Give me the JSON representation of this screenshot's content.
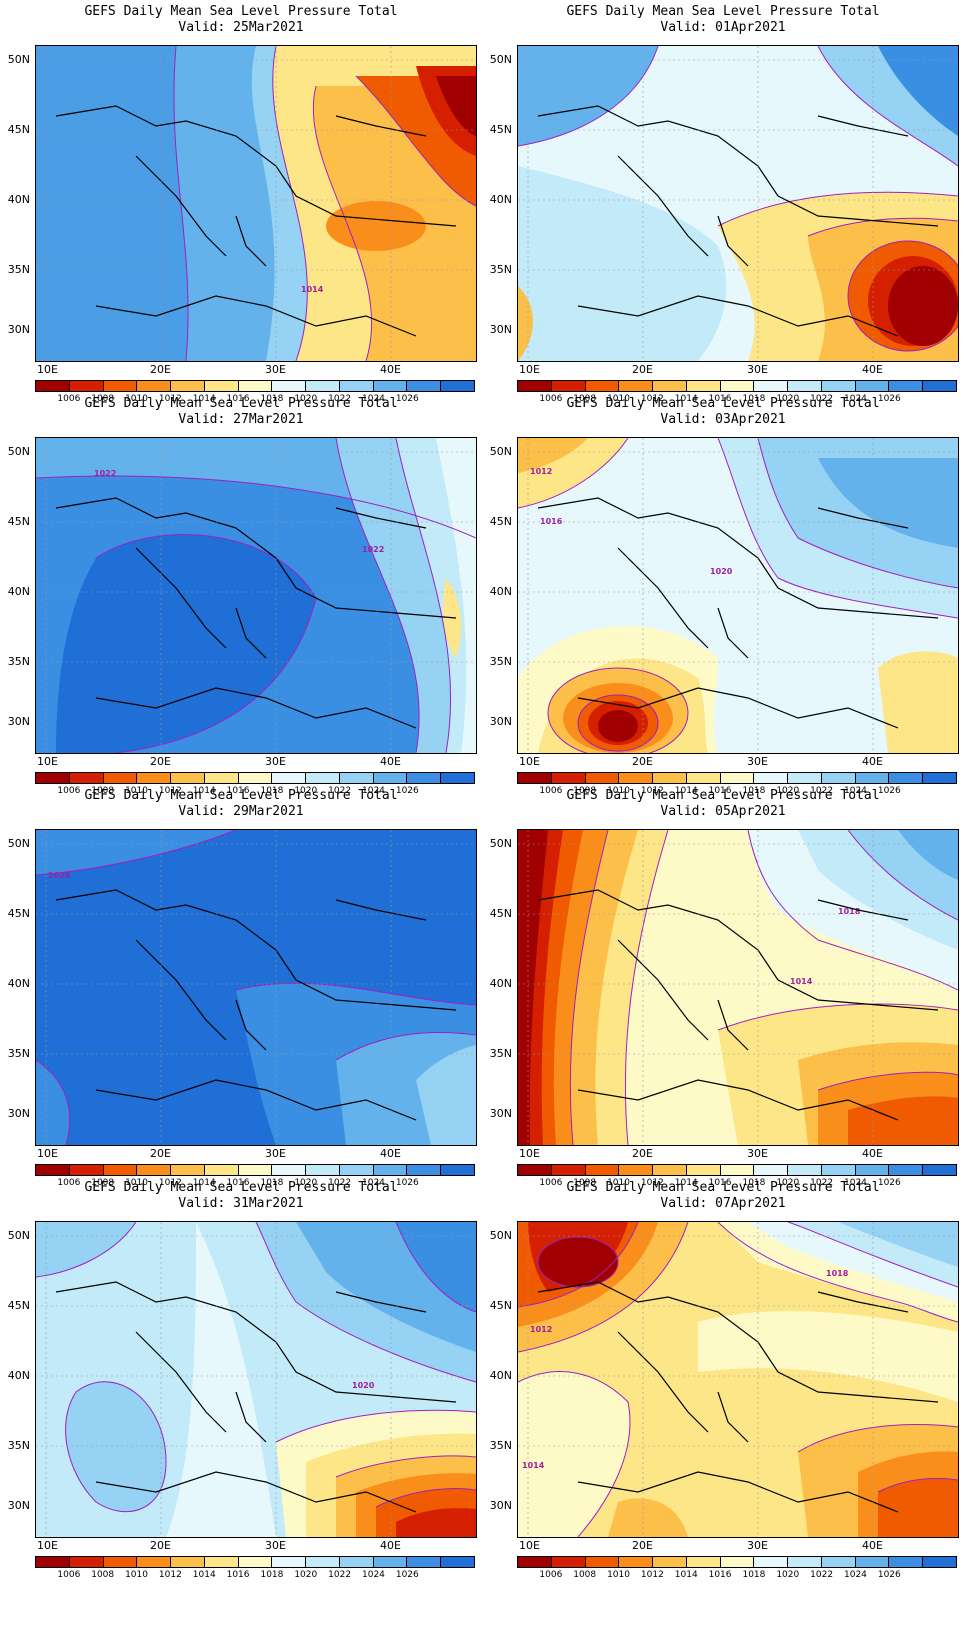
{
  "panels": [
    {
      "id": "p1",
      "title": "GEFS Daily Mean Sea Level Pressure Total",
      "valid": "Valid: 25Mar2021",
      "isobar_labels": [
        "1014"
      ]
    },
    {
      "id": "p2",
      "title": "GEFS Daily Mean Sea Level Pressure Total",
      "valid": "Valid: 01Apr2021",
      "isobar_labels": []
    },
    {
      "id": "p3",
      "title": "GEFS Daily Mean Sea Level Pressure Total",
      "valid": "Valid: 27Mar2021",
      "isobar_labels": [
        "1022",
        "1022"
      ]
    },
    {
      "id": "p4",
      "title": "GEFS Daily Mean Sea Level Pressure Total",
      "valid": "Valid: 03Apr2021",
      "isobar_labels": [
        "1012",
        "1016",
        "1020"
      ]
    },
    {
      "id": "p5",
      "title": "GEFS Daily Mean Sea Level Pressure Total",
      "valid": "Valid: 29Mar2021",
      "isobar_labels": [
        "1026"
      ]
    },
    {
      "id": "p6",
      "title": "GEFS Daily Mean Sea Level Pressure Total",
      "valid": "Valid: 05Apr2021",
      "isobar_labels": [
        "1018",
        "1014"
      ]
    },
    {
      "id": "p7",
      "title": "GEFS Daily Mean Sea Level Pressure Total",
      "valid": "Valid: 31Mar2021",
      "isobar_labels": [
        "1020"
      ]
    },
    {
      "id": "p8",
      "title": "GEFS Daily Mean Sea Level Pressure Total",
      "valid": "Valid: 07Apr2021",
      "isobar_labels": [
        "1018",
        "1012",
        "1014"
      ]
    }
  ],
  "lat_labels": [
    "50N",
    "45N",
    "40N",
    "35N",
    "30N"
  ],
  "lon_labels": [
    "10E",
    "20E",
    "30E",
    "40E"
  ],
  "colorbar": {
    "labels": [
      "1006",
      "1008",
      "1010",
      "1012",
      "1014",
      "1016",
      "1018",
      "1020",
      "1022",
      "1024",
      "1026"
    ],
    "colors": [
      "#a00000",
      "#d42000",
      "#f05a00",
      "#f98f1a",
      "#fcc04a",
      "#fde687",
      "#fefac8",
      "#e6f8fc",
      "#c2eaf8",
      "#95d2f3",
      "#64b2ec",
      "#3b8fe2",
      "#1f6fd6"
    ]
  },
  "isobar_color": "#a020c0"
}
